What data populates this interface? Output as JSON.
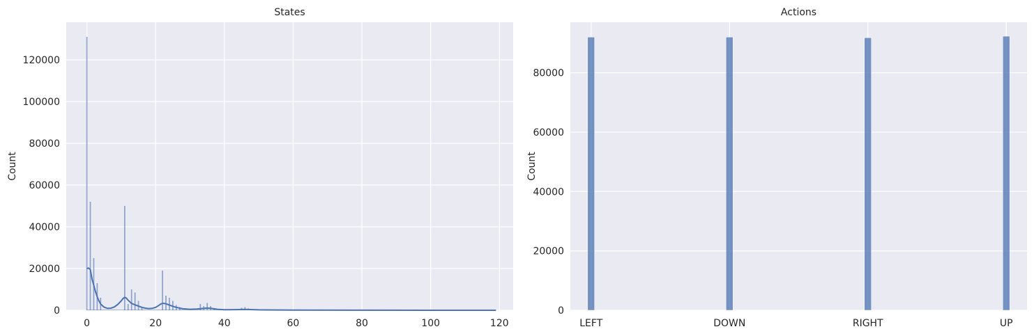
{
  "chart_data": [
    {
      "type": "bar",
      "subtype": "histogram-with-kde",
      "title": "States",
      "xlabel": "",
      "ylabel": "Count",
      "xlim": [
        -6,
        124
      ],
      "ylim": [
        0,
        138000
      ],
      "xticks": [
        0,
        20,
        40,
        60,
        80,
        100,
        120
      ],
      "xtick_labels": [
        "0",
        "20",
        "40",
        "60",
        "80",
        "100",
        "120"
      ],
      "yticks": [
        0,
        20000,
        40000,
        60000,
        80000,
        100000,
        120000
      ],
      "ytick_labels": [
        "0",
        "20000",
        "40000",
        "60000",
        "80000",
        "100000",
        "120000"
      ],
      "grid": true,
      "bar_color": "#4c72b0",
      "bins": [
        {
          "x": 0,
          "value": 131000
        },
        {
          "x": 1,
          "value": 52000
        },
        {
          "x": 2,
          "value": 25000
        },
        {
          "x": 3,
          "value": 13000
        },
        {
          "x": 4,
          "value": 6000
        },
        {
          "x": 11,
          "value": 50000
        },
        {
          "x": 12,
          "value": 3000
        },
        {
          "x": 13,
          "value": 10000
        },
        {
          "x": 14,
          "value": 8500
        },
        {
          "x": 15,
          "value": 4500
        },
        {
          "x": 16,
          "value": 1500
        },
        {
          "x": 22,
          "value": 19000
        },
        {
          "x": 23,
          "value": 7000
        },
        {
          "x": 24,
          "value": 6000
        },
        {
          "x": 25,
          "value": 4500
        },
        {
          "x": 26,
          "value": 2500
        },
        {
          "x": 27,
          "value": 1500
        },
        {
          "x": 33,
          "value": 3000
        },
        {
          "x": 34,
          "value": 2000
        },
        {
          "x": 35,
          "value": 3500
        },
        {
          "x": 36,
          "value": 2000
        },
        {
          "x": 37,
          "value": 800
        },
        {
          "x": 44,
          "value": 700
        },
        {
          "x": 45,
          "value": 1200
        },
        {
          "x": 46,
          "value": 1500
        },
        {
          "x": 47,
          "value": 900
        },
        {
          "x": 56,
          "value": 300
        },
        {
          "x": 57,
          "value": 400
        },
        {
          "x": 58,
          "value": 300
        }
      ],
      "kde": {
        "x": [
          0,
          0.5,
          1,
          1.5,
          2,
          2.5,
          3,
          3.5,
          4,
          5,
          6,
          7,
          8,
          9,
          10,
          10.5,
          11,
          11.5,
          12,
          13,
          14,
          15,
          16,
          17,
          18,
          19,
          20,
          21,
          21.5,
          22,
          22.5,
          23,
          24,
          25,
          26,
          27,
          28,
          30,
          32,
          34,
          35,
          36,
          37,
          38,
          40,
          43,
          46,
          50,
          60,
          80,
          100,
          119
        ],
        "y": [
          20000,
          20200,
          19500,
          15000,
          12000,
          9000,
          6500,
          4500,
          3000,
          1500,
          900,
          1000,
          1600,
          2800,
          4500,
          5600,
          6200,
          5800,
          4800,
          3300,
          2600,
          2000,
          1400,
          1000,
          800,
          900,
          1400,
          2400,
          3000,
          3300,
          3300,
          3100,
          2500,
          1900,
          1400,
          1000,
          700,
          450,
          600,
          900,
          1050,
          950,
          700,
          450,
          250,
          300,
          400,
          200,
          100,
          40,
          20,
          10
        ]
      }
    },
    {
      "type": "bar",
      "subtype": "histogram",
      "title": "Actions",
      "xlabel": "",
      "ylabel": "Count",
      "ylim": [
        0,
        97000
      ],
      "categories": [
        "LEFT",
        "DOWN",
        "RIGHT",
        "UP"
      ],
      "values": [
        92000,
        92000,
        91800,
        92300
      ],
      "yticks": [
        0,
        20000,
        40000,
        60000,
        80000
      ],
      "ytick_labels": [
        "0",
        "20000",
        "40000",
        "60000",
        "80000"
      ],
      "grid": true,
      "bar_color": "#4c72b0"
    }
  ]
}
